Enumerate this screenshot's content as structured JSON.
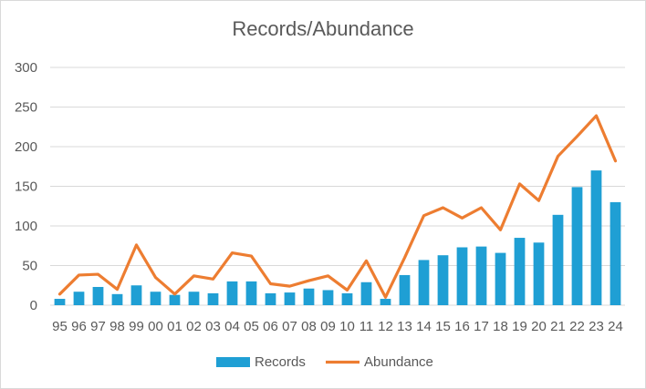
{
  "chart_data": {
    "type": "bar",
    "title": "Records/Abundance",
    "xlabel": "",
    "ylabel": "",
    "categories": [
      "95",
      "96",
      "97",
      "98",
      "99",
      "00",
      "01",
      "02",
      "03",
      "04",
      "05",
      "06",
      "07",
      "08",
      "09",
      "10",
      "11",
      "12",
      "13",
      "14",
      "15",
      "16",
      "17",
      "18",
      "19",
      "20",
      "21",
      "22",
      "23",
      "24"
    ],
    "ylim": [
      0,
      300
    ],
    "yticks": [
      0,
      50,
      100,
      150,
      200,
      250,
      300
    ],
    "grid": true,
    "legend_position": "bottom",
    "series": [
      {
        "name": "Records",
        "type": "bar",
        "color": "#1F9FD4",
        "values": [
          8,
          17,
          23,
          14,
          25,
          17,
          13,
          17,
          15,
          30,
          30,
          15,
          16,
          21,
          19,
          15,
          29,
          8,
          38,
          57,
          63,
          73,
          74,
          66,
          85,
          79,
          114,
          149,
          170,
          130
        ]
      },
      {
        "name": "Abundance",
        "type": "line",
        "color": "#ED7D31",
        "values": [
          14,
          38,
          39,
          20,
          76,
          35,
          14,
          37,
          33,
          66,
          62,
          27,
          24,
          31,
          37,
          19,
          56,
          10,
          60,
          113,
          123,
          110,
          123,
          95,
          153,
          132,
          188,
          213,
          239,
          182
        ]
      }
    ]
  }
}
